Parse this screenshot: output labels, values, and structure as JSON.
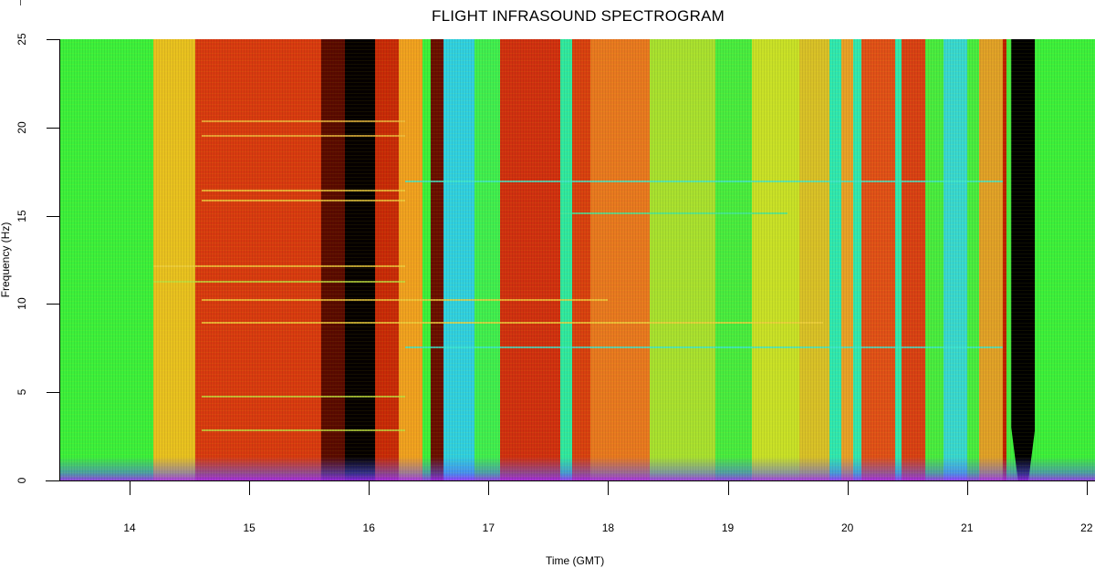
{
  "chart_data": {
    "type": "heatmap",
    "title": "FLIGHT INFRASOUND SPECTROGRAM",
    "xlabel": "Time (GMT)",
    "ylabel": "Frequency (Hz)",
    "x_ticks": [
      14,
      15,
      16,
      17,
      18,
      19,
      20,
      21,
      22
    ],
    "y_ticks": [
      0,
      5,
      10,
      15,
      20,
      25
    ],
    "xlim": [
      13.42,
      22.07
    ],
    "ylim": [
      0,
      25
    ],
    "grid": false,
    "legend": null,
    "colormap": "rainbow (black > red > yellow > green > cyan > blue > magenta)",
    "time_bands": [
      {
        "start": 13.42,
        "end": 14.2,
        "level": "green",
        "color": "#3cf03c"
      },
      {
        "start": 14.2,
        "end": 14.55,
        "level": "yellow-orange",
        "color": "#e8c020"
      },
      {
        "start": 14.55,
        "end": 15.6,
        "level": "red",
        "color": "#d83a10"
      },
      {
        "start": 15.6,
        "end": 15.8,
        "level": "black-red",
        "color": "#5a0a00"
      },
      {
        "start": 15.8,
        "end": 16.05,
        "level": "black",
        "color": "#050000"
      },
      {
        "start": 16.05,
        "end": 16.25,
        "level": "red",
        "color": "#c82a08"
      },
      {
        "start": 16.25,
        "end": 16.45,
        "level": "orange-yellow",
        "color": "#f0a020"
      },
      {
        "start": 16.45,
        "end": 16.52,
        "level": "green",
        "color": "#3cf03c"
      },
      {
        "start": 16.52,
        "end": 16.62,
        "level": "black-red",
        "color": "#6a0e00"
      },
      {
        "start": 16.62,
        "end": 16.88,
        "level": "cyan-blue",
        "color": "#30d0e0"
      },
      {
        "start": 16.88,
        "end": 17.1,
        "level": "green",
        "color": "#40ee50"
      },
      {
        "start": 17.1,
        "end": 17.6,
        "level": "red",
        "color": "#d03010"
      },
      {
        "start": 17.6,
        "end": 17.7,
        "level": "cyan-green",
        "color": "#30e8a0"
      },
      {
        "start": 17.7,
        "end": 17.85,
        "level": "red",
        "color": "#d84010"
      },
      {
        "start": 17.85,
        "end": 18.35,
        "level": "orange",
        "color": "#e87820"
      },
      {
        "start": 18.35,
        "end": 18.9,
        "level": "yellow-green",
        "color": "#a8e030"
      },
      {
        "start": 18.9,
        "end": 19.2,
        "level": "green",
        "color": "#48ec40"
      },
      {
        "start": 19.2,
        "end": 19.6,
        "level": "yellow",
        "color": "#c8e028"
      },
      {
        "start": 19.6,
        "end": 19.85,
        "level": "yellow-orange",
        "color": "#d8c028"
      },
      {
        "start": 19.85,
        "end": 19.95,
        "level": "cyan",
        "color": "#30e8b0"
      },
      {
        "start": 19.95,
        "end": 20.05,
        "level": "orange",
        "color": "#e8a028"
      },
      {
        "start": 20.05,
        "end": 20.12,
        "level": "cyan",
        "color": "#30e8b0"
      },
      {
        "start": 20.12,
        "end": 20.4,
        "level": "red",
        "color": "#e05018"
      },
      {
        "start": 20.4,
        "end": 20.45,
        "level": "cyan",
        "color": "#30e8b0"
      },
      {
        "start": 20.45,
        "end": 20.65,
        "level": "red",
        "color": "#d84014"
      },
      {
        "start": 20.65,
        "end": 20.8,
        "level": "green",
        "color": "#48ec40"
      },
      {
        "start": 20.8,
        "end": 21.0,
        "level": "cyan-blue",
        "color": "#38d8d0"
      },
      {
        "start": 21.0,
        "end": 21.1,
        "level": "green",
        "color": "#48ec40"
      },
      {
        "start": 21.1,
        "end": 21.3,
        "level": "orange-yellow",
        "color": "#e0a028"
      },
      {
        "start": 21.3,
        "end": 21.33,
        "level": "red",
        "color": "#c02000"
      },
      {
        "start": 21.33,
        "end": 21.37,
        "level": "green",
        "color": "#48ec40"
      },
      {
        "start": 21.37,
        "end": 21.57,
        "level": "black (no data)",
        "color": "#000000"
      },
      {
        "start": 21.57,
        "end": 22.07,
        "level": "green",
        "color": "#3cf03c"
      }
    ],
    "tonal_lines_hz": [
      {
        "freq": 20.4,
        "start": 14.6,
        "end": 16.3,
        "color": "#f0c040"
      },
      {
        "freq": 19.6,
        "start": 14.6,
        "end": 16.3,
        "color": "#f0c040"
      },
      {
        "freq": 17.0,
        "start": 16.3,
        "end": 21.3,
        "color": "#40e8d0"
      },
      {
        "freq": 16.5,
        "start": 14.6,
        "end": 16.3,
        "color": "#f0d040"
      },
      {
        "freq": 15.9,
        "start": 14.6,
        "end": 16.3,
        "color": "#f0d040"
      },
      {
        "freq": 15.2,
        "start": 17.6,
        "end": 19.5,
        "color": "#40e8a0"
      },
      {
        "freq": 12.2,
        "start": 14.2,
        "end": 16.3,
        "color": "#f0d040"
      },
      {
        "freq": 11.3,
        "start": 14.2,
        "end": 16.3,
        "color": "#c0e040"
      },
      {
        "freq": 10.3,
        "start": 14.6,
        "end": 18.0,
        "color": "#f0d040"
      },
      {
        "freq": 9.0,
        "start": 14.6,
        "end": 19.8,
        "color": "#f0d040"
      },
      {
        "freq": 7.6,
        "start": 16.3,
        "end": 21.3,
        "color": "#40e8d0"
      },
      {
        "freq": 4.8,
        "start": 14.6,
        "end": 16.3,
        "color": "#c0e040"
      },
      {
        "freq": 2.9,
        "start": 14.6,
        "end": 16.3,
        "color": "#c0e040"
      }
    ]
  },
  "axes": {
    "y_tick_labels": [
      "25",
      "20",
      "15",
      "10",
      "5",
      "0"
    ],
    "x_tick_labels": [
      "14",
      "15",
      "16",
      "17",
      "18",
      "19",
      "20",
      "21",
      "22"
    ]
  }
}
